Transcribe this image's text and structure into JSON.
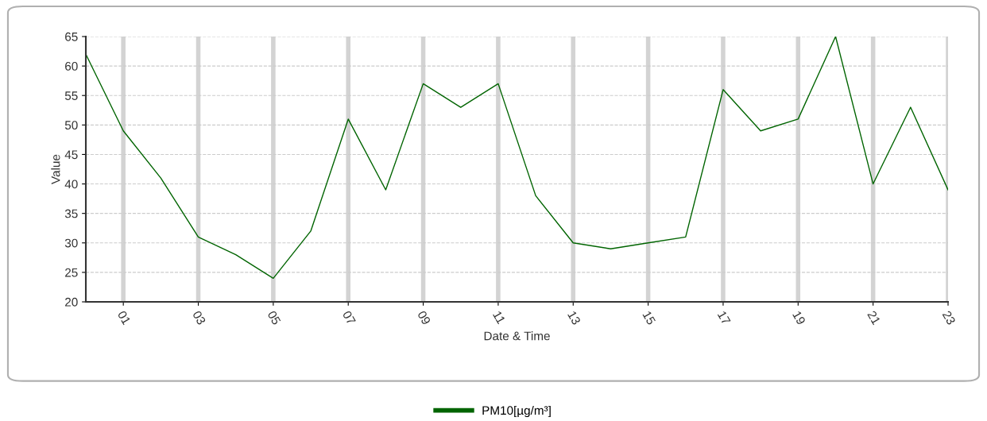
{
  "chart_data": {
    "type": "line",
    "xlabel": "Date & Time",
    "ylabel": "Value",
    "x": [
      0,
      1,
      2,
      3,
      4,
      5,
      6,
      7,
      8,
      9,
      10,
      11,
      12,
      13,
      14,
      15,
      16,
      17,
      18,
      19,
      20,
      21,
      22,
      23
    ],
    "series": [
      {
        "name": "PM10[µg/m³]",
        "color": "#006400",
        "values": [
          62,
          49,
          41,
          31,
          28,
          24,
          32,
          51,
          39,
          57,
          53,
          57,
          38,
          30,
          29,
          30,
          31,
          56,
          49,
          51,
          65,
          40,
          53,
          39
        ]
      }
    ],
    "xlim": [
      0,
      23
    ],
    "xticks": [
      {
        "value": 1,
        "label": "01"
      },
      {
        "value": 3,
        "label": "03"
      },
      {
        "value": 5,
        "label": "05"
      },
      {
        "value": 7,
        "label": "07"
      },
      {
        "value": 9,
        "label": "09"
      },
      {
        "value": 11,
        "label": "11"
      },
      {
        "value": 13,
        "label": "13"
      },
      {
        "value": 15,
        "label": "15"
      },
      {
        "value": 17,
        "label": "17"
      },
      {
        "value": 19,
        "label": "19"
      },
      {
        "value": 21,
        "label": "21"
      },
      {
        "value": 23,
        "label": "23"
      }
    ],
    "ylim": [
      20,
      65
    ],
    "yticks": [
      20,
      25,
      30,
      35,
      40,
      45,
      50,
      55,
      60,
      65
    ],
    "grid": true,
    "legend": "bottom",
    "marker": "none",
    "line_style": "solid"
  }
}
